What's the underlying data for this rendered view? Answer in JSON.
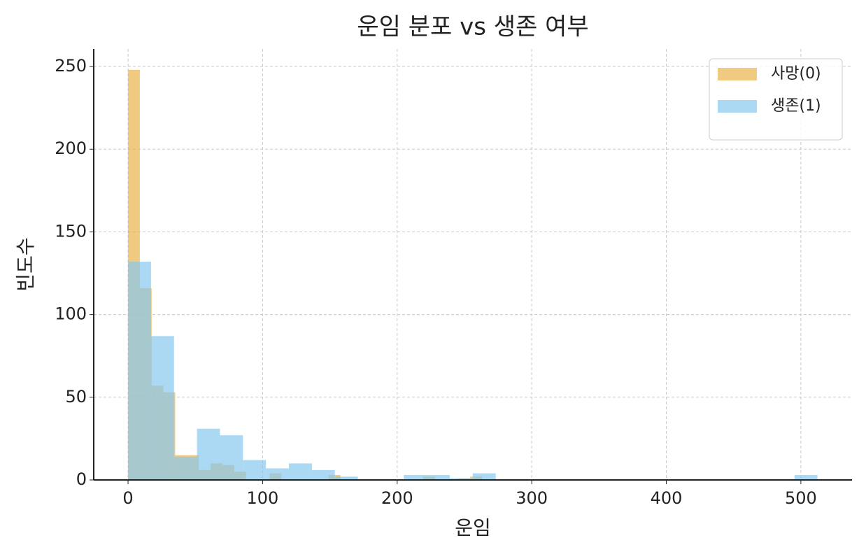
{
  "chart_data": {
    "type": "histogram",
    "title": "운임 분포 vs 생존 여부",
    "x_label": "운임",
    "y_label": "빈도수",
    "xlim": [
      -25.5,
      538
    ],
    "ylim": [
      0,
      260.6
    ],
    "xticks": [
      0,
      100,
      200,
      300,
      400,
      500
    ],
    "yticks": [
      0,
      50,
      100,
      150,
      200,
      250
    ],
    "grid": true,
    "legend": "upper right",
    "series": [
      {
        "name": "사망(0)",
        "color": "#e9b44c",
        "opacity": 0.7,
        "bins": [
          0,
          8.77,
          17.53,
          26.3,
          35.07,
          43.83,
          52.6,
          61.37,
          70.13,
          78.9,
          87.67,
          96.43,
          105.2,
          113.97,
          122.73,
          131.5,
          140.27,
          149.03,
          157.8,
          166.57,
          175.33,
          184.1,
          192.87,
          201.63,
          210.4,
          219.17,
          227.93,
          236.7,
          245.47,
          254.23,
          263
        ],
        "values": [
          248,
          116,
          57,
          53,
          15,
          15,
          6,
          10,
          9,
          5,
          0,
          0,
          4,
          0,
          0,
          0,
          0,
          3,
          0,
          0,
          0,
          0,
          0,
          0,
          0,
          2,
          0,
          0,
          1,
          2
        ]
      },
      {
        "name": "생존(1)",
        "color": "#87c8ee",
        "opacity": 0.7,
        "bins": [
          0,
          17.08,
          34.16,
          51.23,
          68.31,
          85.39,
          102.47,
          119.54,
          136.62,
          153.7,
          170.78,
          187.85,
          204.93,
          222.01,
          239.09,
          256.16,
          273.24,
          290.32,
          307.4,
          324.47,
          341.55,
          358.63,
          375.71,
          392.78,
          409.86,
          426.94,
          444.02,
          461.09,
          478.17,
          495.25,
          512.33
        ],
        "values": [
          132,
          87,
          14,
          31,
          27,
          12,
          7,
          10,
          6,
          2,
          0,
          0,
          3,
          3,
          1,
          4,
          0,
          0,
          0,
          0,
          0,
          0,
          0,
          0,
          0,
          0,
          0,
          0,
          0,
          3
        ]
      }
    ]
  }
}
